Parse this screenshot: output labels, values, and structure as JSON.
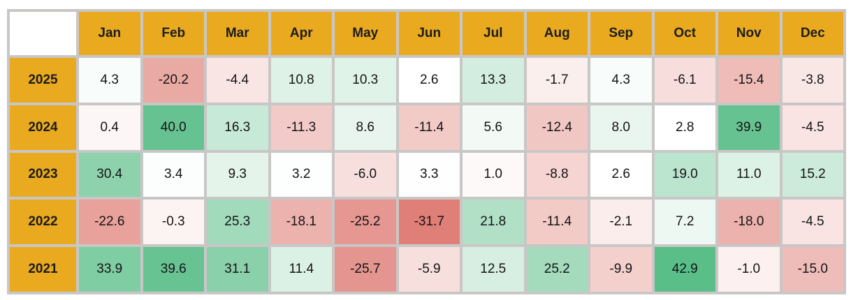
{
  "chart_data": {
    "type": "heatmap",
    "corner_label": "",
    "columns": [
      "Jan",
      "Feb",
      "Mar",
      "Apr",
      "May",
      "Jun",
      "Jul",
      "Aug",
      "Sep",
      "Oct",
      "Nov",
      "Dec"
    ],
    "rows": [
      "2025",
      "2024",
      "2023",
      "2022",
      "2021"
    ],
    "values": [
      [
        4.3,
        -20.2,
        -4.4,
        10.8,
        10.3,
        2.6,
        13.3,
        -1.7,
        4.3,
        -6.1,
        -15.4,
        -3.8
      ],
      [
        0.4,
        40.0,
        16.3,
        -11.3,
        8.6,
        -11.4,
        5.6,
        -12.4,
        8.0,
        2.8,
        39.9,
        -4.5
      ],
      [
        30.4,
        3.4,
        9.3,
        3.2,
        -6.0,
        3.3,
        1.0,
        -8.8,
        2.6,
        19.0,
        11.0,
        15.2
      ],
      [
        -22.6,
        -0.3,
        25.3,
        -18.1,
        -25.2,
        -31.7,
        21.8,
        -11.4,
        -2.1,
        7.2,
        -18.0,
        -4.5
      ],
      [
        33.9,
        39.6,
        31.1,
        11.4,
        -25.7,
        -5.9,
        12.5,
        25.2,
        -9.9,
        42.9,
        -1.0,
        -15.0
      ]
    ],
    "value_format": "one-decimal",
    "color_scale": {
      "min": -31.7,
      "mid": 2.7,
      "max": 42.9,
      "min_color": "#E07F77",
      "mid_color": "#FFFFFF",
      "max_color": "#5ABE88"
    },
    "colors": {
      "header_bg": "#EAAA1F",
      "header_text": "#1C1C1C",
      "grid_bg": "#C9C7C6",
      "corner_bg": "#FFFFFF",
      "value_text": "#141414"
    },
    "layout": {
      "grid": "separated-cells",
      "legend": "none"
    }
  }
}
